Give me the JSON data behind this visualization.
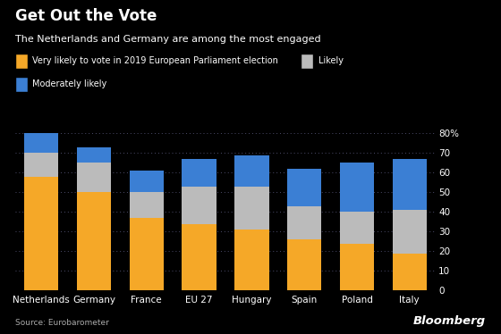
{
  "categories": [
    "Netherlands",
    "Germany",
    "France",
    "EU 27",
    "Hungary",
    "Spain",
    "Poland",
    "Italy"
  ],
  "very_likely": [
    58,
    50,
    37,
    34,
    31,
    26,
    24,
    19
  ],
  "likely": [
    12,
    15,
    13,
    19,
    22,
    17,
    16,
    22
  ],
  "moderately_likely": [
    10,
    8,
    11,
    14,
    16,
    19,
    25,
    26
  ],
  "colors": {
    "very_likely": "#F5A828",
    "likely": "#BBBBBB",
    "moderately_likely": "#3B7FD4"
  },
  "title": "Get Out the Vote",
  "subtitle": "The Netherlands and Germany are among the most engaged",
  "legend_line1_label1": "Very likely to vote in 2019 European Parliament election",
  "legend_line1_label2": "Likely",
  "legend_line2_label": "Moderately likely",
  "ylim": [
    0,
    85
  ],
  "yticks": [
    0,
    10,
    20,
    30,
    40,
    50,
    60,
    70,
    80
  ],
  "ytick_labels": [
    "0",
    "10",
    "20",
    "30",
    "40",
    "50",
    "60",
    "70",
    "80%"
  ],
  "source": "Source: Eurobarometer",
  "bloomberg": "Bloomberg",
  "bg_color": "#000000",
  "text_color": "#ffffff",
  "grid_color": "#333355"
}
